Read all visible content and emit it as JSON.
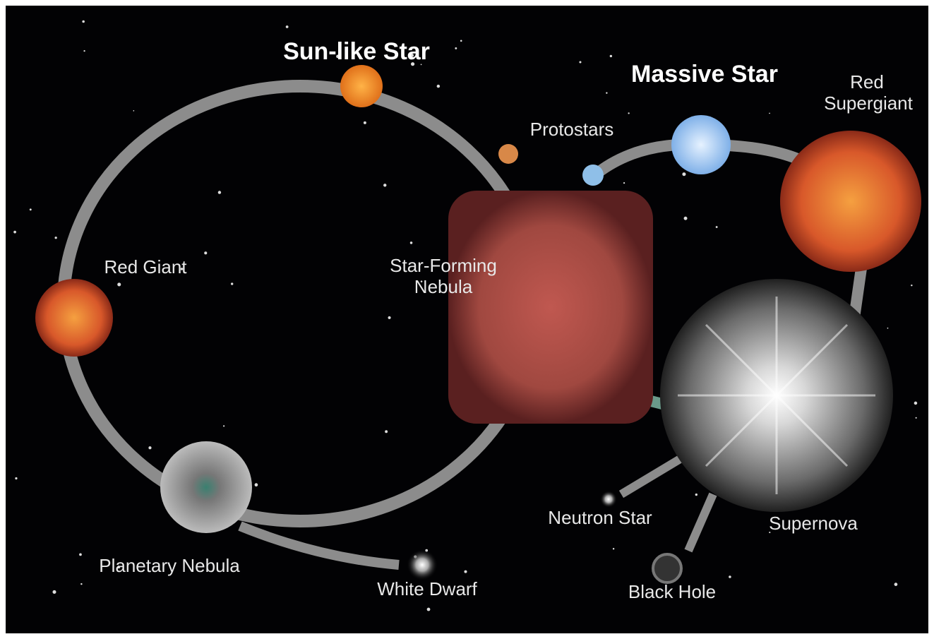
{
  "nodes": [
    {
      "label": [
        "Sun-like Star"
      ]
    },
    {
      "label": [
        "Massive Star"
      ]
    },
    {
      "label": [
        "Red",
        "Supergiant"
      ]
    },
    {
      "label": [
        "Protostars"
      ]
    },
    {
      "label": [
        "Red Giant"
      ]
    },
    {
      "label": [
        "Star-Forming",
        "Nebula"
      ]
    },
    {
      "label": [
        "Planetary Nebula"
      ]
    },
    {
      "label": [
        "White Dwarf"
      ]
    },
    {
      "label": [
        "Neutron Star"
      ]
    },
    {
      "label": [
        "Supernova"
      ]
    },
    {
      "label": [
        "Black Hole"
      ]
    }
  ]
}
